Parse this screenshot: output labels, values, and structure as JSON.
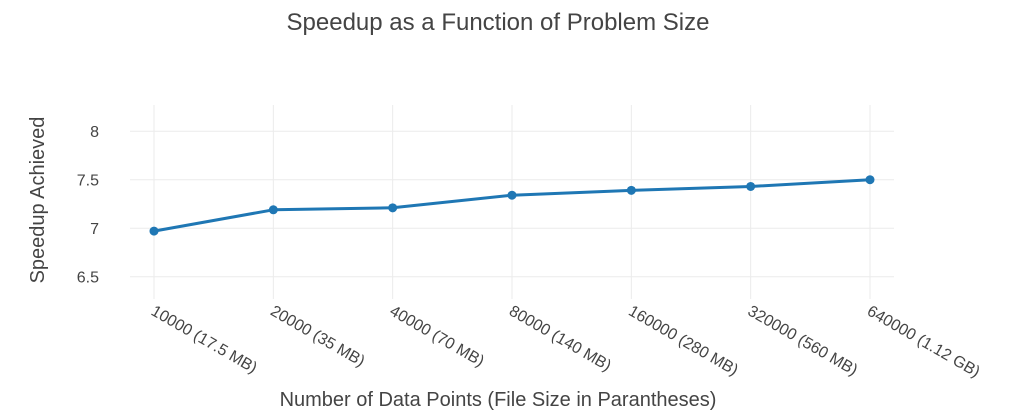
{
  "chart_data": {
    "type": "line",
    "title": "Speedup as a Function of Problem Size",
    "xlabel": "Number of Data  Points (File Size in Parantheses)",
    "ylabel": "Speedup Achieved",
    "categories": [
      "10000 (17.5 MB)",
      "20000 (35 MB)",
      "40000 (70 MB)",
      "80000 (140 MB)",
      "160000 (280 MB)",
      "320000 (560 MB)",
      "640000 (1.12 GB)"
    ],
    "series": [
      {
        "values": [
          6.97,
          7.19,
          7.21,
          7.34,
          7.39,
          7.43,
          7.5
        ],
        "color": "#1f77b4"
      }
    ],
    "ylim": [
      6.27,
      8.27
    ],
    "yticks": [
      6.5,
      7,
      7.5,
      8
    ],
    "ytick_labels": [
      "6.5",
      "7",
      "7.5",
      "8"
    ],
    "grid": true,
    "legend": "none"
  }
}
